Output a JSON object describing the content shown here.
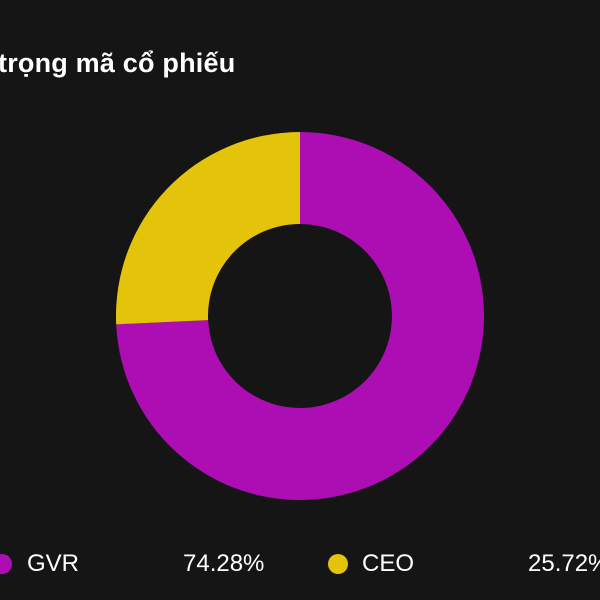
{
  "title": "trọng mã cổ phiếu",
  "chart_data": {
    "type": "pie",
    "title": "trọng mã cổ phiếu",
    "donut": true,
    "series": [
      {
        "name": "GVR",
        "value": 74.28,
        "value_label": "74.28%",
        "color": "#ad0eb3"
      },
      {
        "name": "CEO",
        "value": 25.72,
        "value_label": "25.72%",
        "color": "#e3c40b"
      }
    ],
    "legend_position": "bottom"
  },
  "background_color": "#151515"
}
